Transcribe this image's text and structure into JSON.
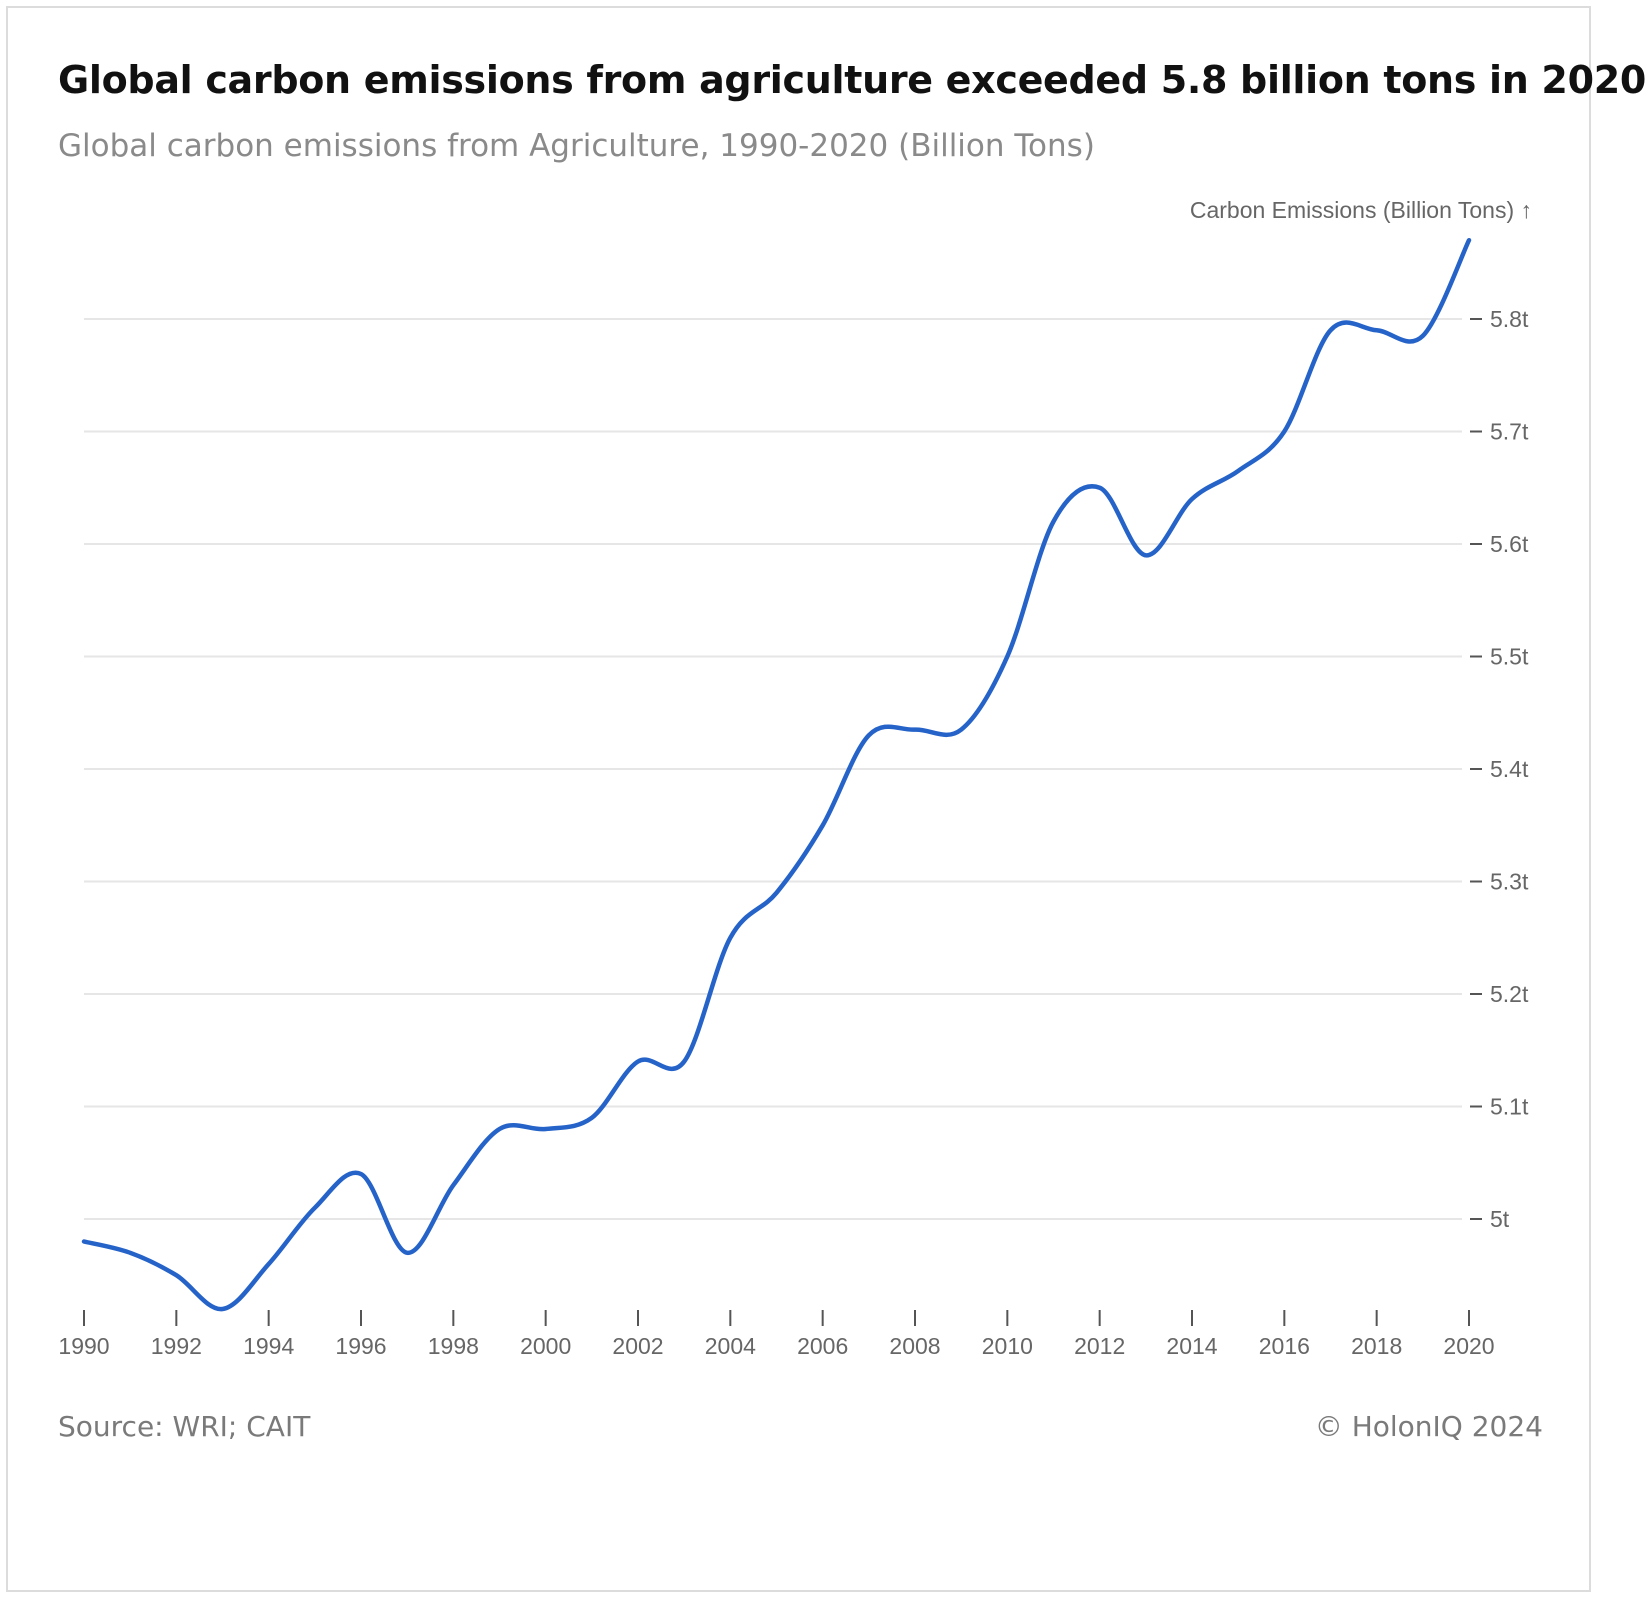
{
  "header": {
    "title": "Global carbon emissions from agriculture exceeded 5.8 billion tons in 2020",
    "subtitle": "Global carbon emissions from Agriculture, 1990-2020 (Billion Tons)"
  },
  "footer": {
    "source": "Source: WRI; CAIT",
    "copyright": "© HolonIQ 2024"
  },
  "colors": {
    "line": "#2563c9",
    "grid": "#e6e6e6",
    "axis": "#555555"
  },
  "chart_data": {
    "type": "line",
    "title": "Global carbon emissions from agriculture exceeded 5.8 billion tons in 2020",
    "subtitle": "Global carbon emissions from Agriculture, 1990-2020 (Billion Tons)",
    "ylabel": "Carbon Emissions (Billion Tons) ↑",
    "xlabel": "",
    "x": [
      1990,
      1991,
      1992,
      1993,
      1994,
      1995,
      1996,
      1997,
      1998,
      1999,
      2000,
      2001,
      2002,
      2003,
      2004,
      2005,
      2006,
      2007,
      2008,
      2009,
      2010,
      2011,
      2012,
      2013,
      2014,
      2015,
      2016,
      2017,
      2018,
      2019,
      2020
    ],
    "series": [
      {
        "values": [
          4.98,
          4.97,
          4.95,
          4.92,
          4.96,
          5.01,
          5.04,
          4.97,
          5.03,
          5.08,
          5.08,
          5.09,
          5.14,
          5.14,
          5.25,
          5.29,
          5.35,
          5.43,
          5.435,
          5.435,
          5.5,
          5.62,
          5.65,
          5.59,
          5.64,
          5.665,
          5.7,
          5.79,
          5.79,
          5.785,
          5.87
        ]
      }
    ],
    "x_ticks": [
      "1990",
      "1992",
      "1994",
      "1996",
      "1998",
      "2000",
      "2002",
      "2004",
      "2006",
      "2008",
      "2010",
      "2012",
      "2014",
      "2016",
      "2018",
      "2020"
    ],
    "y_ticks": [
      {
        "value": 5.0,
        "label": "5t"
      },
      {
        "value": 5.1,
        "label": "5.1t"
      },
      {
        "value": 5.2,
        "label": "5.2t"
      },
      {
        "value": 5.3,
        "label": "5.3t"
      },
      {
        "value": 5.4,
        "label": "5.4t"
      },
      {
        "value": 5.5,
        "label": "5.5t"
      },
      {
        "value": 5.6,
        "label": "5.6t"
      },
      {
        "value": 5.7,
        "label": "5.7t"
      },
      {
        "value": 5.8,
        "label": "5.8t"
      }
    ],
    "xlim": [
      1990,
      2020
    ],
    "ylim": [
      4.91,
      5.9
    ],
    "grid": true,
    "legend": "none",
    "y_axis_position": "right"
  }
}
